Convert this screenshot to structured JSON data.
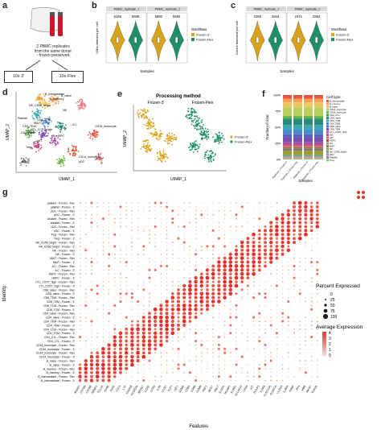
{
  "panel_a": {
    "letter": "a",
    "description_lines": [
      "2 PBMC replicates",
      "from the same donor",
      "- frozen preserved"
    ],
    "box_left": "10x 3'",
    "box_right": "10x Flex"
  },
  "panel_b": {
    "letter": "b",
    "ylabel": "UMIs detected per cell",
    "xlabel": "Samples",
    "legend_title": "Workflows",
    "legend_items": [
      "Frozen-3'",
      "Frozen-Flex"
    ],
    "facets": [
      {
        "title": "PBMC_replicate_1",
        "counts": [
          "6126",
          "5608"
        ]
      },
      {
        "title": "PBMC_replicate_2",
        "counts": [
          "5890",
          "5592"
        ]
      }
    ]
  },
  "panel_c": {
    "letter": "c",
    "ylabel": "Genes detected per cell",
    "xlabel": "Samples",
    "legend_title": "Workflows",
    "legend_items": [
      "Frozen-3'",
      "Frozen-Flex"
    ],
    "facets": [
      {
        "title": "PBMC_replicate_1",
        "counts": [
          "2268",
          "2844"
        ]
      },
      {
        "title": "PBMC_replicate_2",
        "counts": [
          "2471",
          "2854"
        ]
      }
    ]
  },
  "panel_d": {
    "letter": "d",
    "xlabel": "UMAP_1",
    "ylabel": "UMAP_2",
    "labels": [
      "B_intermediate",
      "B_memory",
      "B_naive",
      "NK_CD56_bright",
      "NK",
      "Platelet",
      "CD8_TEM",
      "MAIT",
      "CD4_TEM",
      "CTL_CCR7_high",
      "CD4_naive",
      "ILC",
      "HSPC",
      "Treg",
      "gdT",
      "CD16_monocyte",
      "CD14_monocyte",
      "pDC",
      "dnT"
    ]
  },
  "panel_e": {
    "letter": "e",
    "title": "Processing method",
    "xlabel": "UMAP_1",
    "ylabel": "UMAP_2",
    "sub_left": "Frozen-3'",
    "sub_right": "Frozen-Flex",
    "legend_items": [
      "Frozen-3'",
      "Frozen-Flex"
    ]
  },
  "panel_f": {
    "letter": "f",
    "ylabel": "Fraction of total",
    "xlabel": "Samples",
    "legend_title": "Cell type",
    "yticks": [
      "100%",
      "75%",
      "50%",
      "25%",
      "0%"
    ],
    "cell_types": [
      "B_intermediate",
      "B_memory",
      "B_naive",
      "CD14_monocyte",
      "CD16_monocyte",
      "CD4_CTL",
      "CD4_naive",
      "CD4_TCM",
      "CD4_TEM",
      "CD8_naive",
      "CD8_TEM",
      "CTL_CCR7_high",
      "dnT",
      "gdT",
      "HSPC",
      "ILC",
      "MAIT",
      "NK",
      "NK_CD56_bright",
      "pDC",
      "Platelet",
      "Treg"
    ],
    "colors": [
      "#e8553f",
      "#f5a05a",
      "#f2c45f",
      "#b9cf5a",
      "#6cb84a",
      "#3e9c47",
      "#2a8b7a",
      "#3aa7b5",
      "#4a86c8",
      "#5566c0",
      "#7a4fb0",
      "#a54aa8",
      "#c74b8a",
      "#d86a6a",
      "#8c5a3a",
      "#b08a5a",
      "#777777",
      "#9e9e2e",
      "#55aa99",
      "#cc7799",
      "#8888cc",
      "#aabb77"
    ],
    "x_categories": [
      "Replicate_1 Frozen-3'",
      "Replicate_1 Frozen-Flex",
      "Replicate_2 Frozen-3'",
      "Replicate_2 Frozen-Flex"
    ]
  },
  "panel_g": {
    "letter": "g",
    "ylabel": "Identity",
    "xlabel": "Features",
    "legend_pct_title": "Percent Expressed",
    "legend_pct_values": [
      "0",
      "25",
      "50",
      "75",
      "100"
    ],
    "legend_avg_title": "Average Expression",
    "legend_avg_values": [
      "4",
      "3",
      "2",
      "1",
      "0"
    ],
    "rows": [
      "platelet - Frozen - Flex",
      "platelet - Frozen - 3'",
      "pDC - Frozen - Flex",
      "pDC - Frozen - 3'",
      "doublet - Frozen - Flex",
      "doublet - Frozen - 3'",
      "cDC - Frozen - Flex",
      "cDC - Frozen - 3'",
      "Treg - Frozen - Flex",
      "Treg - Frozen - 3'",
      "NK_CD56_bright - Frozen - Flex",
      "NK_CD56_bright - Frozen - 3'",
      "NK - Frozen - Flex",
      "NK - Frozen - 3'",
      "MAIT - Frozen - Flex",
      "MAIT - Frozen - 3'",
      "ILC - Frozen - Flex",
      "ILC - Frozen - 3'",
      "HSPC - Frozen - Flex",
      "HSPC - Frozen - 3'",
      "CTL_CCR7_high - Frozen - Flex",
      "CTL_CCR7_high - Frozen - 3'",
      "CD8_naive - Frozen - Flex",
      "CD8_naive - Frozen - 3'",
      "CD8_TEM - Frozen - Flex",
      "CD8_TEM - Frozen - 3'",
      "CD8_TCM - Frozen - Flex",
      "CD8_TCM - Frozen - 3'",
      "CD4_naive - Frozen - Flex",
      "CD4_naive - Frozen - 3'",
      "CD4_TEM - Frozen - Flex",
      "CD4_TEM - Frozen - 3'",
      "CD4_TCM - Frozen - Flex",
      "CD4_TCM - Frozen - 3'",
      "CD4_CTL - Frozen - Flex",
      "CD4_CTL - Frozen - 3'",
      "CD16_monocyte - Frozen - Flex",
      "CD16_monocyte - Frozen - 3'",
      "CD14_monocyte - Frozen - Flex",
      "CD14_monocyte - Frozen - 3'",
      "B_naive - Frozen - Flex",
      "B_naive - Frozen - 3'",
      "B_memory - Frozen - Flex",
      "B_memory - Frozen - 3'",
      "B_intermediate - Frozen - Flex",
      "B_intermediate - Frozen - 3'"
    ],
    "features": [
      "MS4A1",
      "CD79A",
      "CD79B",
      "BANK1",
      "TCL1A",
      "IGHM",
      "IGHD",
      "CD14",
      "LYZ",
      "S100A8",
      "FCGR3A",
      "MS4A7",
      "CD3E",
      "CD3D",
      "IL7R",
      "CCR7",
      "TCF7",
      "LEF1",
      "GZMK",
      "CD8A",
      "CD8B",
      "GZMB",
      "PRF1",
      "NKG7",
      "GNLY",
      "KLRD1",
      "NCAM1",
      "KLRB1",
      "SLC4A10",
      "CD34",
      "KIT",
      "FOXP3",
      "IL2RA",
      "CLEC10A",
      "FCER1A",
      "LILRA4",
      "IL3RA",
      "PPBP",
      "PF4",
      "HBB",
      "MKI67",
      "TOP2A"
    ]
  }
}
